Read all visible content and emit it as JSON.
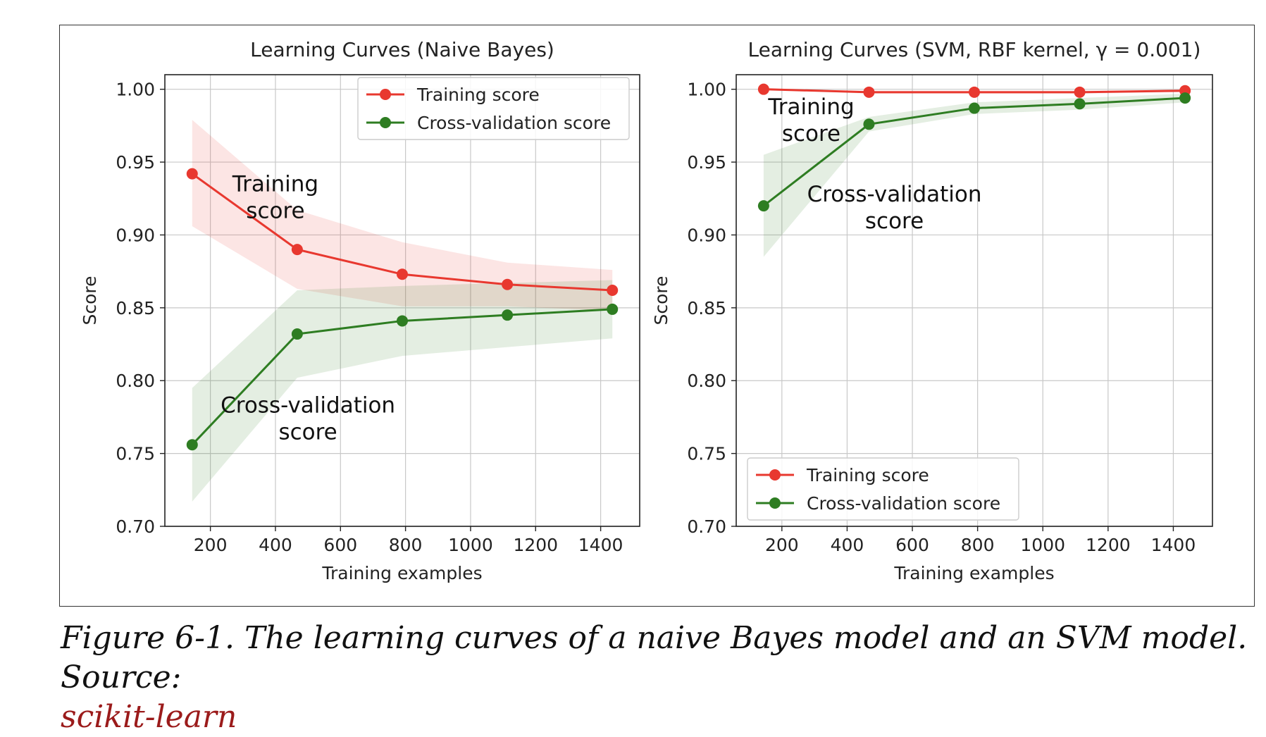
{
  "caption": {
    "text": "Figure 6-1. The learning curves of a naive Bayes model and an SVM model. Source:",
    "link_text": "scikit-learn",
    "link_color": "#9b1b1b"
  },
  "chart_data": [
    {
      "type": "line",
      "title": "Learning Curves (Naive Bayes)",
      "xlabel": "Training examples",
      "ylabel": "Score",
      "xlim": [
        60,
        1520
      ],
      "ylim": [
        0.7,
        1.01
      ],
      "xticks": [
        200,
        400,
        600,
        800,
        1000,
        1200,
        1400
      ],
      "yticks": [
        0.7,
        0.75,
        0.8,
        0.85,
        0.9,
        0.95,
        1.0
      ],
      "grid": true,
      "legend": "top-right",
      "x": [
        144,
        467,
        790,
        1113,
        1436
      ],
      "series": [
        {
          "name": "Training score",
          "color": "#e8382f",
          "values": [
            0.942,
            0.89,
            0.873,
            0.866,
            0.862
          ],
          "band_upper": [
            0.979,
            0.917,
            0.895,
            0.881,
            0.876
          ],
          "band_lower": [
            0.906,
            0.863,
            0.851,
            0.851,
            0.848
          ]
        },
        {
          "name": "Cross-validation score",
          "color": "#2e7d22",
          "values": [
            0.756,
            0.832,
            0.841,
            0.845,
            0.849
          ],
          "band_upper": [
            0.795,
            0.862,
            0.865,
            0.867,
            0.869
          ],
          "band_lower": [
            0.717,
            0.802,
            0.817,
            0.823,
            0.829
          ]
        }
      ],
      "annotations": [
        {
          "lines": [
            "Training",
            "score"
          ],
          "x": 400,
          "y": 0.93
        },
        {
          "lines": [
            "Cross-validation",
            "score"
          ],
          "x": 500,
          "y": 0.778
        }
      ]
    },
    {
      "type": "line",
      "title": "Learning Curves (SVM, RBF kernel, γ = 0.001)",
      "xlabel": "Training examples",
      "ylabel": "Score",
      "xlim": [
        60,
        1520
      ],
      "ylim": [
        0.7,
        1.01
      ],
      "xticks": [
        200,
        400,
        600,
        800,
        1000,
        1200,
        1400
      ],
      "yticks": [
        0.7,
        0.75,
        0.8,
        0.85,
        0.9,
        0.95,
        1.0
      ],
      "grid": true,
      "legend": "bottom-left",
      "x": [
        144,
        467,
        790,
        1113,
        1436
      ],
      "series": [
        {
          "name": "Training score",
          "color": "#e8382f",
          "values": [
            1.0,
            0.998,
            0.998,
            0.998,
            0.999
          ],
          "band_upper": [
            1.0,
            0.999,
            0.999,
            0.999,
            0.999
          ],
          "band_lower": [
            1.0,
            0.997,
            0.997,
            0.997,
            0.998
          ]
        },
        {
          "name": "Cross-validation score",
          "color": "#2e7d22",
          "values": [
            0.92,
            0.976,
            0.987,
            0.99,
            0.994
          ],
          "band_upper": [
            0.955,
            0.981,
            0.991,
            0.994,
            0.997
          ],
          "band_lower": [
            0.885,
            0.971,
            0.983,
            0.986,
            0.991
          ]
        }
      ],
      "annotations": [
        {
          "lines": [
            "Training",
            "score"
          ],
          "x": 290,
          "y": 0.983
        },
        {
          "lines": [
            "Cross-validation",
            "score"
          ],
          "x": 545,
          "y": 0.923
        }
      ]
    }
  ]
}
